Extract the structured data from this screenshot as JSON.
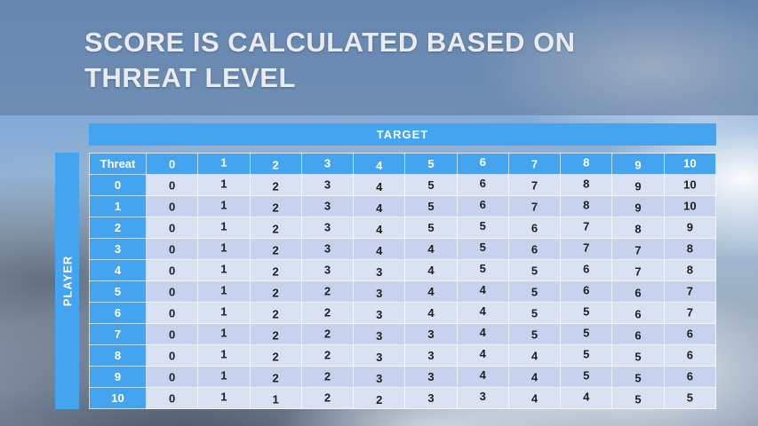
{
  "slide": {
    "title_line1": "SCORE IS CALCULATED BASED ON",
    "title_line2": "THREAT LEVEL"
  },
  "table": {
    "target_label": "TARGET",
    "player_label": "PLAYER",
    "corner_label": "Threat",
    "column_headers": [
      "0",
      "1",
      "2",
      "3",
      "4",
      "5",
      "6",
      "7",
      "8",
      "9",
      "10"
    ],
    "rows": [
      {
        "threat": "0",
        "values": [
          "0",
          "1",
          "2",
          "3",
          "4",
          "5",
          "6",
          "7",
          "8",
          "9",
          "10"
        ]
      },
      {
        "threat": "1",
        "values": [
          "0",
          "1",
          "2",
          "3",
          "4",
          "5",
          "6",
          "7",
          "8",
          "9",
          "10"
        ]
      },
      {
        "threat": "2",
        "values": [
          "0",
          "1",
          "2",
          "3",
          "4",
          "5",
          "5",
          "6",
          "7",
          "8",
          "9"
        ]
      },
      {
        "threat": "3",
        "values": [
          "0",
          "1",
          "2",
          "3",
          "4",
          "4",
          "5",
          "6",
          "7",
          "7",
          "8"
        ]
      },
      {
        "threat": "4",
        "values": [
          "0",
          "1",
          "2",
          "3",
          "3",
          "4",
          "5",
          "5",
          "6",
          "7",
          "8"
        ]
      },
      {
        "threat": "5",
        "values": [
          "0",
          "1",
          "2",
          "2",
          "3",
          "4",
          "4",
          "5",
          "6",
          "6",
          "7"
        ]
      },
      {
        "threat": "6",
        "values": [
          "0",
          "1",
          "2",
          "2",
          "3",
          "4",
          "4",
          "5",
          "5",
          "6",
          "7"
        ]
      },
      {
        "threat": "7",
        "values": [
          "0",
          "1",
          "2",
          "2",
          "3",
          "3",
          "4",
          "5",
          "5",
          "6",
          "6"
        ]
      },
      {
        "threat": "8",
        "values": [
          "0",
          "1",
          "2",
          "2",
          "3",
          "3",
          "4",
          "4",
          "5",
          "5",
          "6"
        ]
      },
      {
        "threat": "9",
        "values": [
          "0",
          "1",
          "2",
          "2",
          "3",
          "3",
          "4",
          "4",
          "5",
          "5",
          "6"
        ]
      },
      {
        "threat": "10",
        "values": [
          "0",
          "1",
          "1",
          "2",
          "2",
          "3",
          "3",
          "4",
          "4",
          "5",
          "5"
        ]
      }
    ]
  },
  "colors": {
    "accent_blue": "#45a4ef",
    "band_overlay": "#617899",
    "row_light": "#d9e1f3",
    "row_dark": "#c7d3ee",
    "title_text": "#e9ebee",
    "cell_text": "#1f1f1f"
  },
  "chart_data": {
    "type": "table",
    "title": "Score is calculated based on threat level",
    "row_axis_label": "PLAYER (Threat)",
    "column_axis_label": "TARGET",
    "columns": [
      0,
      1,
      2,
      3,
      4,
      5,
      6,
      7,
      8,
      9,
      10
    ],
    "row_labels": [
      0,
      1,
      2,
      3,
      4,
      5,
      6,
      7,
      8,
      9,
      10
    ],
    "matrix": [
      [
        0,
        1,
        2,
        3,
        4,
        5,
        6,
        7,
        8,
        9,
        10
      ],
      [
        0,
        1,
        2,
        3,
        4,
        5,
        6,
        7,
        8,
        9,
        10
      ],
      [
        0,
        1,
        2,
        3,
        4,
        5,
        5,
        6,
        7,
        8,
        9
      ],
      [
        0,
        1,
        2,
        3,
        4,
        4,
        5,
        6,
        7,
        7,
        8
      ],
      [
        0,
        1,
        2,
        3,
        3,
        4,
        5,
        5,
        6,
        7,
        8
      ],
      [
        0,
        1,
        2,
        2,
        3,
        4,
        4,
        5,
        6,
        6,
        7
      ],
      [
        0,
        1,
        2,
        2,
        3,
        4,
        4,
        5,
        5,
        6,
        7
      ],
      [
        0,
        1,
        2,
        2,
        3,
        3,
        4,
        5,
        5,
        6,
        6
      ],
      [
        0,
        1,
        2,
        2,
        3,
        3,
        4,
        4,
        5,
        5,
        6
      ],
      [
        0,
        1,
        2,
        2,
        3,
        3,
        4,
        4,
        5,
        5,
        6
      ],
      [
        0,
        1,
        1,
        2,
        2,
        3,
        3,
        4,
        4,
        5,
        5
      ]
    ]
  }
}
